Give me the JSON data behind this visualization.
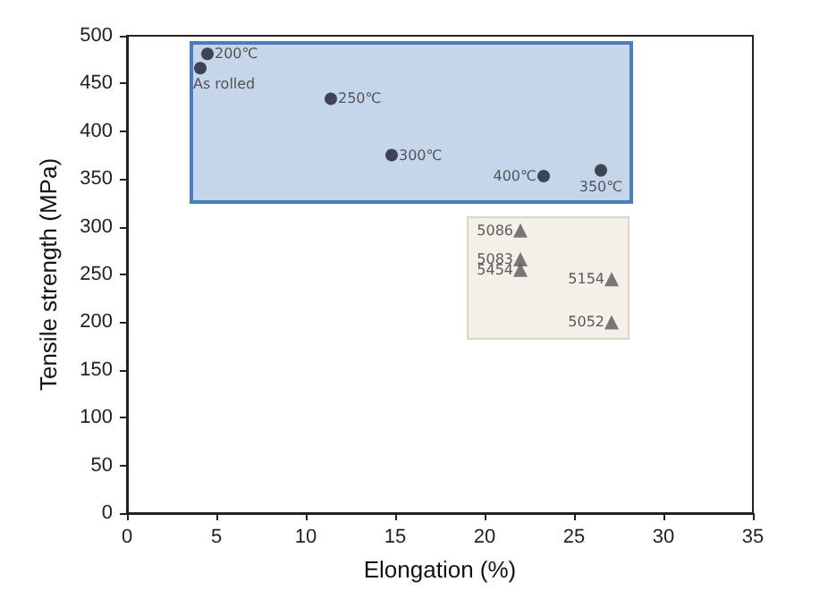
{
  "chart_data": {
    "type": "scatter",
    "xlabel": "Elongation (%)",
    "ylabel": "Tensile strength (MPa)",
    "xlim": [
      0,
      35
    ],
    "xticks": [
      0,
      5,
      10,
      15,
      20,
      25,
      30,
      35
    ],
    "ylim": [
      0,
      500
    ],
    "yticks": [
      0,
      50,
      100,
      150,
      200,
      250,
      300,
      350,
      400,
      450,
      500
    ],
    "grid": false,
    "series": [
      {
        "color": "#1a1f2e",
        "marker": "circle",
        "x": [
          4.1,
          4.5,
          11.4,
          14.8,
          23.3,
          26.5
        ],
        "values": [
          466,
          481,
          434,
          375,
          353,
          359
        ]
      },
      {
        "color": "#595959",
        "marker": "triangle",
        "x": [
          22.0,
          22.0,
          22.0,
          27.1,
          27.1
        ],
        "values": [
          296,
          266,
          255,
          245,
          200
        ]
      }
    ],
    "annotations": [
      {
        "text": "As rolled",
        "x": 4.1,
        "y": 466
      },
      {
        "text": "200℃",
        "x": 4.5,
        "y": 481
      },
      {
        "text": "250℃",
        "x": 11.4,
        "y": 434
      },
      {
        "text": "300℃",
        "x": 14.8,
        "y": 375
      },
      {
        "text": "400℃",
        "x": 23.3,
        "y": 353
      },
      {
        "text": "350℃",
        "x": 26.5,
        "y": 359
      },
      {
        "text": "5086",
        "x": 22.0,
        "y": 296
      },
      {
        "text": "5083",
        "x": 22.0,
        "y": 266
      },
      {
        "text": "5454",
        "x": 22.0,
        "y": 255
      },
      {
        "text": "5154",
        "x": 27.1,
        "y": 245
      },
      {
        "text": "5052",
        "x": 27.1,
        "y": 200
      }
    ]
  }
}
